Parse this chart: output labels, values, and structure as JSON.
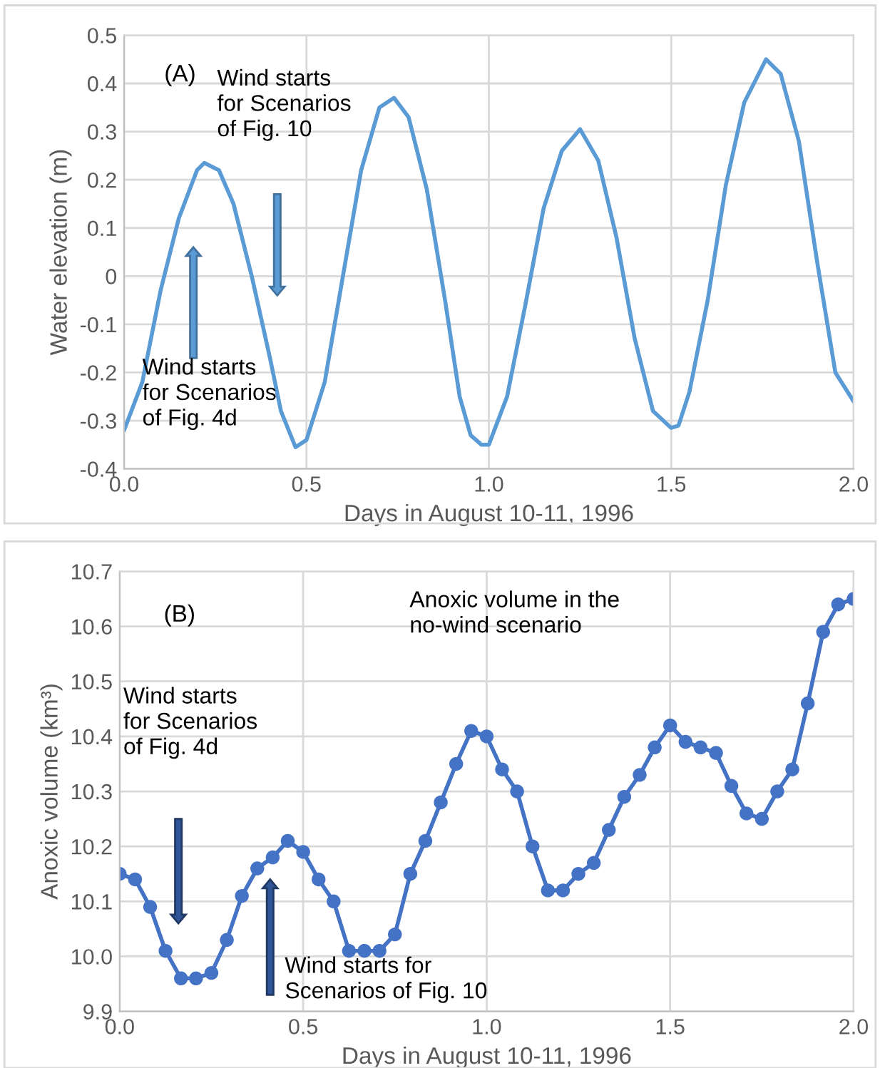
{
  "chart_data": [
    {
      "type": "line",
      "xlabel": "Days in August 10-11, 1996",
      "ylabel": "Water elevation (m)",
      "annotations": [
        "(A)",
        "Wind starts\nfor Scenarios\nof Fig. 10",
        "Wind starts\nfor Scenarios\nof Fig. 4d"
      ],
      "series": [
        {
          "color": "#5b9bd5",
          "x": [
            0,
            0.05,
            0.1,
            0.15,
            0.2,
            0.22,
            0.26,
            0.3,
            0.35,
            0.4,
            0.43,
            0.47,
            0.5,
            0.55,
            0.6,
            0.65,
            0.7,
            0.74,
            0.78,
            0.83,
            0.88,
            0.92,
            0.95,
            0.98,
            1.0,
            1.05,
            1.1,
            1.15,
            1.2,
            1.25,
            1.3,
            1.35,
            1.4,
            1.45,
            1.5,
            1.52,
            1.55,
            1.6,
            1.65,
            1.7,
            1.76,
            1.8,
            1.85,
            1.9,
            1.95,
            2.0
          ],
          "values": [
            -0.32,
            -0.22,
            -0.03,
            0.12,
            0.22,
            0.235,
            0.22,
            0.15,
            0.0,
            -0.17,
            -0.28,
            -0.355,
            -0.34,
            -0.22,
            0.0,
            0.22,
            0.35,
            0.37,
            0.33,
            0.18,
            -0.05,
            -0.25,
            -0.33,
            -0.35,
            -0.35,
            -0.25,
            -0.06,
            0.14,
            0.26,
            0.305,
            0.24,
            0.08,
            -0.13,
            -0.28,
            -0.315,
            -0.31,
            -0.24,
            -0.05,
            0.19,
            0.36,
            0.45,
            0.42,
            0.28,
            0.03,
            -0.2,
            -0.26
          ]
        }
      ],
      "xlim": [
        0,
        2
      ],
      "xticks": [
        {
          "value": 0,
          "label": "0.0"
        },
        {
          "value": 0.5,
          "label": "0.5"
        },
        {
          "value": 1,
          "label": "1.0"
        },
        {
          "value": 1.5,
          "label": "1.5"
        },
        {
          "value": 2,
          "label": "2.0"
        }
      ],
      "ylim": [
        -0.4,
        0.5
      ],
      "yticks": [
        -0.4,
        -0.3,
        -0.2,
        -0.1,
        0,
        0.1,
        0.2,
        0.3,
        0.4,
        0.5
      ],
      "grid": true,
      "marker": "none"
    },
    {
      "type": "line",
      "xlabel": "Days in August 10-11, 1996",
      "ylabel": "Anoxic volume (km³)",
      "annotations": [
        "(B)",
        "Anoxic volume in the\nno-wind scenario",
        "Wind starts\nfor Scenarios\nof Fig. 4d",
        "Wind starts for\nScenarios of Fig. 10"
      ],
      "series": [
        {
          "color": "#4472c4",
          "x": [
            0,
            0.042,
            0.083,
            0.125,
            0.167,
            0.208,
            0.25,
            0.292,
            0.333,
            0.375,
            0.417,
            0.458,
            0.5,
            0.542,
            0.583,
            0.625,
            0.667,
            0.708,
            0.75,
            0.792,
            0.833,
            0.875,
            0.917,
            0.958,
            1.0,
            1.042,
            1.083,
            1.125,
            1.167,
            1.208,
            1.25,
            1.292,
            1.333,
            1.375,
            1.417,
            1.458,
            1.5,
            1.542,
            1.583,
            1.625,
            1.667,
            1.708,
            1.75,
            1.792,
            1.833,
            1.875,
            1.917,
            1.958,
            2.0
          ],
          "values": [
            10.15,
            10.14,
            10.09,
            10.01,
            9.96,
            9.96,
            9.97,
            10.03,
            10.11,
            10.16,
            10.18,
            10.21,
            10.19,
            10.14,
            10.1,
            10.01,
            10.01,
            10.01,
            10.04,
            10.15,
            10.21,
            10.28,
            10.35,
            10.41,
            10.4,
            10.34,
            10.3,
            10.2,
            10.12,
            10.12,
            10.15,
            10.17,
            10.23,
            10.29,
            10.33,
            10.38,
            10.42,
            10.39,
            10.38,
            10.37,
            10.31,
            10.26,
            10.25,
            10.3,
            10.34,
            10.46,
            10.59,
            10.64,
            10.65
          ]
        }
      ],
      "xlim": [
        0,
        2
      ],
      "xticks": [
        {
          "value": 0,
          "label": "0.0"
        },
        {
          "value": 0.5,
          "label": "0.5"
        },
        {
          "value": 1,
          "label": "1.0"
        },
        {
          "value": 1.5,
          "label": "1.5"
        },
        {
          "value": 2,
          "label": "2.0"
        }
      ],
      "ylim": [
        9.9,
        10.7
      ],
      "yticks": [
        9.9,
        {
          "value": 10,
          "label": "10.0"
        },
        10.1,
        10.2,
        10.3,
        10.4,
        10.5,
        10.6,
        10.7
      ],
      "grid": true,
      "marker": "circle"
    }
  ]
}
